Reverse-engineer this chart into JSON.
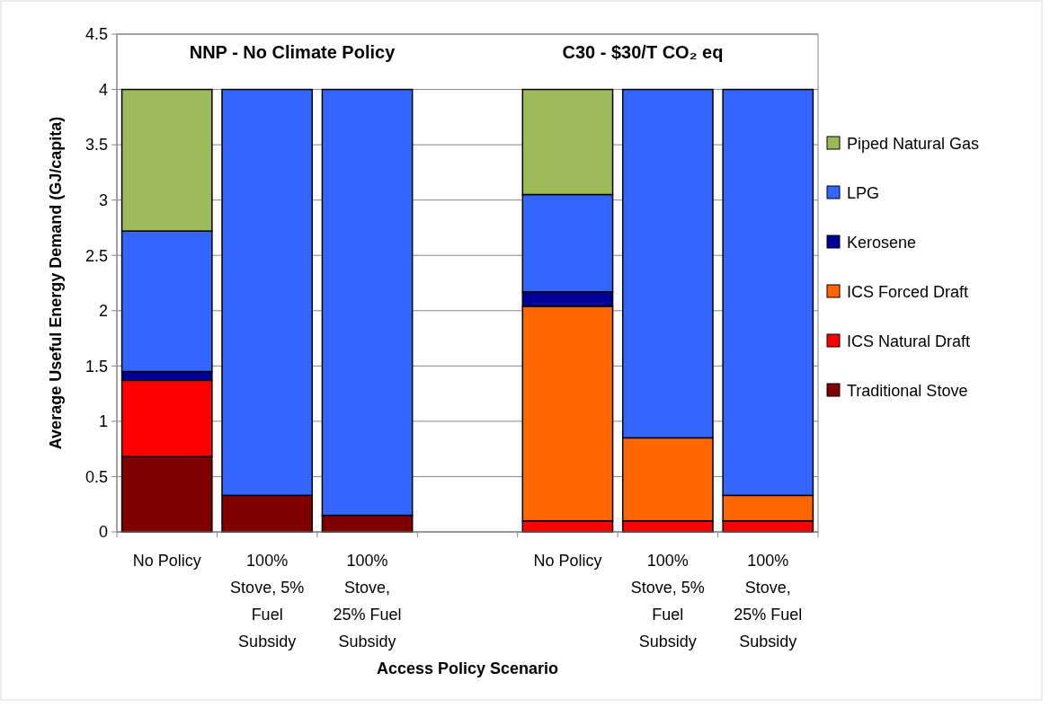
{
  "chart_data": {
    "type": "bar",
    "stacked": true,
    "xlabel": "Access Policy Scenario",
    "ylabel": "Average Useful Energy Demand (GJ/capita)",
    "annotations": [
      "NNP - No Climate Policy",
      "C30 - $30/T  CO₂ eq"
    ],
    "categories": [
      "No Policy",
      "100% Stove, 5% Fuel Subsidy",
      "100% Stove, 25% Fuel Subsidy",
      null,
      "No Policy",
      "100% Stove, 5% Fuel Subsidy",
      "100% Stove, 25% Fuel Subsidy"
    ],
    "series": [
      {
        "name": "Traditional Stove",
        "color": "#800000",
        "values": [
          0.68,
          0.33,
          0.15,
          null,
          null,
          null,
          null
        ]
      },
      {
        "name": "ICS Natural Draft",
        "color": "#ff0000",
        "values": [
          0.69,
          null,
          null,
          null,
          0.1,
          0.1,
          0.1
        ]
      },
      {
        "name": "ICS Forced Draft",
        "color": "#ff6600",
        "values": [
          null,
          null,
          null,
          null,
          1.94,
          0.75,
          0.23
        ]
      },
      {
        "name": "Kerosene",
        "color": "#000099",
        "values": [
          0.08,
          null,
          null,
          null,
          0.13,
          null,
          null
        ]
      },
      {
        "name": "LPG",
        "color": "#3366ff",
        "values": [
          1.27,
          3.67,
          3.85,
          null,
          0.88,
          3.15,
          3.67
        ]
      },
      {
        "name": "Piped Natural Gas",
        "color": "#9bbb59",
        "values": [
          1.28,
          null,
          null,
          null,
          0.95,
          null,
          null
        ]
      }
    ],
    "ylim": [
      0,
      4.5
    ],
    "yticks": [
      0,
      0.5,
      1,
      1.5,
      2,
      2.5,
      3,
      3.5,
      4,
      4.5
    ],
    "grid": "y",
    "legend": "right"
  }
}
